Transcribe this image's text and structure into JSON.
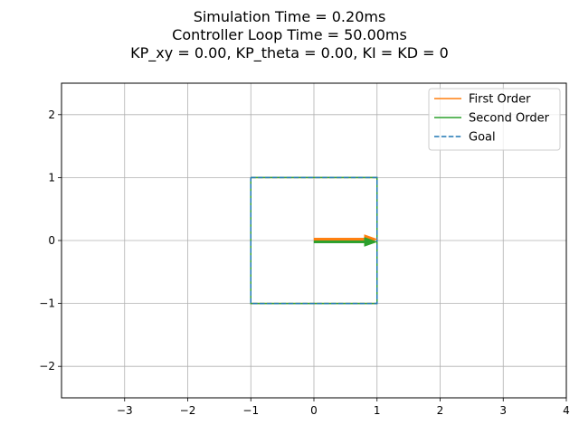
{
  "chart_data": {
    "type": "line",
    "title_lines": [
      "Simulation Time = 0.20ms",
      "Controller Loop Time = 50.00ms",
      "KP_xy = 0.00, KP_theta = 0.00, KI = KD = 0"
    ],
    "xlabel": "",
    "ylabel": "",
    "xlim": [
      -4,
      4
    ],
    "ylim": [
      -2.5,
      2.5
    ],
    "xticks": [
      -3,
      -2,
      -1,
      0,
      1,
      2,
      3,
      4
    ],
    "xtick_labels": [
      "−3",
      "−2",
      "−1",
      "0",
      "1",
      "2",
      "3",
      "4"
    ],
    "yticks": [
      -2,
      -1,
      0,
      1,
      2
    ],
    "ytick_labels": [
      "−2",
      "−1",
      "0",
      "1",
      "2"
    ],
    "grid": true,
    "legend_position": "top-right",
    "series": [
      {
        "name": "First Order",
        "color": "#ff7f0e",
        "style": "solid",
        "x": [
          -1,
          1,
          1,
          -1,
          -1
        ],
        "y": [
          1,
          1,
          -1,
          -1,
          1
        ]
      },
      {
        "name": "Second Order",
        "color": "#2ca02c",
        "style": "solid",
        "x": [
          -1,
          1,
          1,
          -1,
          -1
        ],
        "y": [
          1,
          1,
          -1,
          -1,
          1
        ]
      },
      {
        "name": "Goal",
        "color": "#1f77b4",
        "style": "dashed",
        "x": [
          -1,
          1,
          1,
          -1,
          -1
        ],
        "y": [
          1,
          1,
          -1,
          -1,
          1
        ]
      }
    ],
    "arrows": [
      {
        "series": "First Order",
        "color": "#ff7f0e",
        "x": 0,
        "y": 0,
        "dx": 1,
        "dy": 0
      },
      {
        "series": "Second Order",
        "color": "#2ca02c",
        "x": 0,
        "y": 0,
        "dx": 1,
        "dy": 0
      }
    ]
  }
}
